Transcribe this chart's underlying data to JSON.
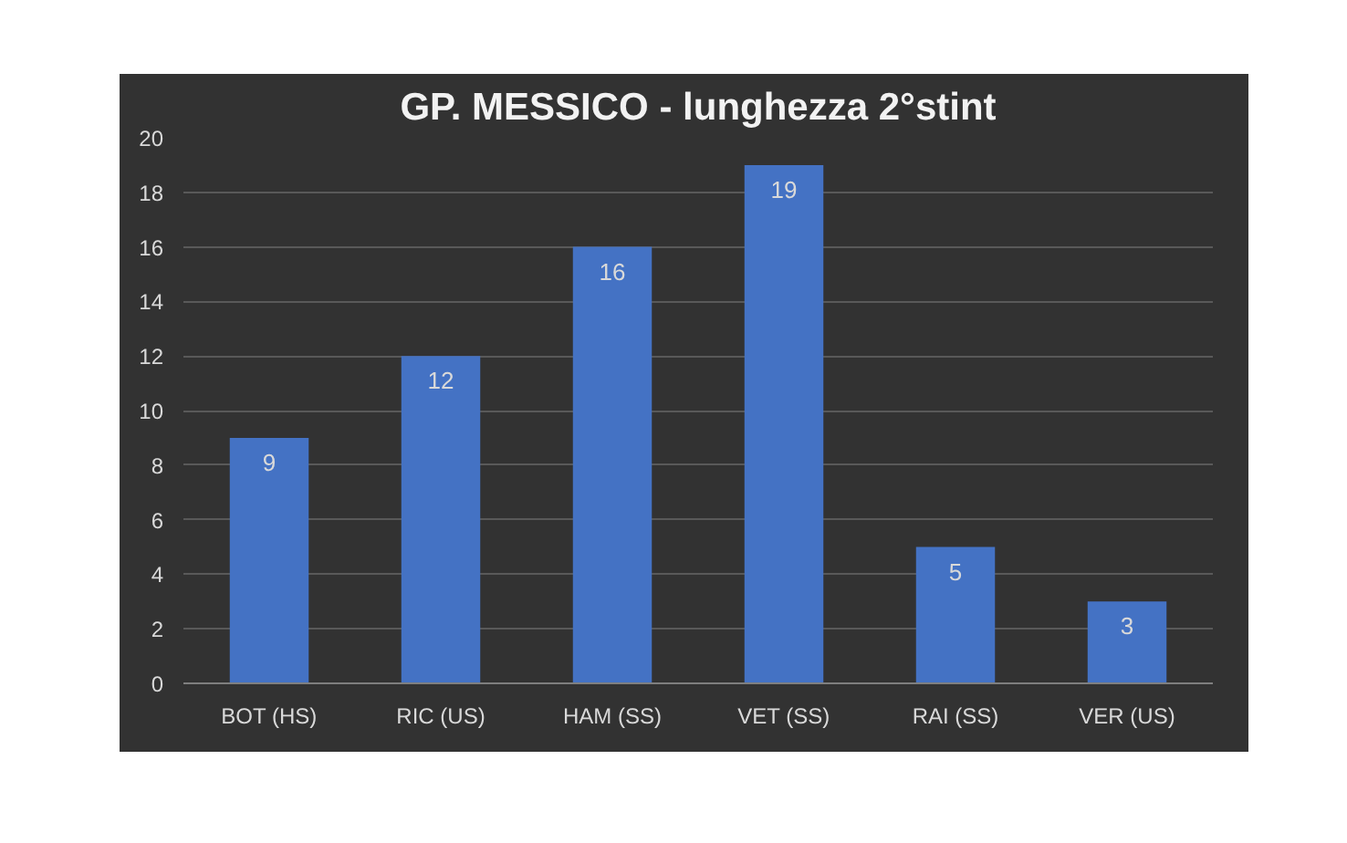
{
  "chart_data": {
    "type": "bar",
    "title": "GP. MESSICO - lunghezza 2°stint",
    "categories": [
      "BOT (HS)",
      "RIC (US)",
      "HAM (SS)",
      "VET (SS)",
      "RAI (SS)",
      "VER (US)"
    ],
    "values": [
      9,
      12,
      16,
      19,
      5,
      3
    ],
    "color": "#4472c4",
    "ylim": [
      0,
      20
    ],
    "yticks": [
      0,
      2,
      4,
      6,
      8,
      10,
      12,
      14,
      16,
      18,
      20
    ],
    "grid": "y",
    "data_labels": true
  }
}
